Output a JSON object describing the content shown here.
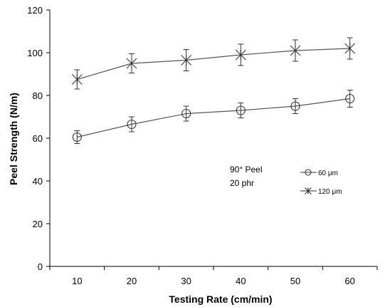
{
  "chart_data": {
    "type": "line",
    "title": "",
    "xlabel": "Testing Rate (cm/min)",
    "ylabel": "Peel Strength (N/m)",
    "x": [
      10,
      20,
      30,
      40,
      50,
      60
    ],
    "x_ticks": [
      "10",
      "20",
      "30",
      "40",
      "50",
      "60"
    ],
    "xlim": [
      5,
      65
    ],
    "ylim": [
      0,
      120
    ],
    "y_ticks": [
      "0",
      "20",
      "40",
      "60",
      "80",
      "100",
      "120"
    ],
    "grid": false,
    "legend_position": "center-right",
    "series": [
      {
        "name": "60 μm",
        "marker": "circle",
        "values": [
          60.5,
          66.5,
          71.5,
          73,
          75,
          78.5
        ],
        "errors": [
          3,
          3.5,
          3.5,
          3.5,
          3.5,
          4
        ]
      },
      {
        "name": "120 μm",
        "marker": "x",
        "values": [
          87.5,
          95,
          96.5,
          99,
          101,
          102
        ],
        "errors": [
          4.5,
          4.5,
          5,
          5,
          5,
          5
        ]
      }
    ],
    "annotations": [
      "90° Peel",
      "20 phr"
    ]
  }
}
